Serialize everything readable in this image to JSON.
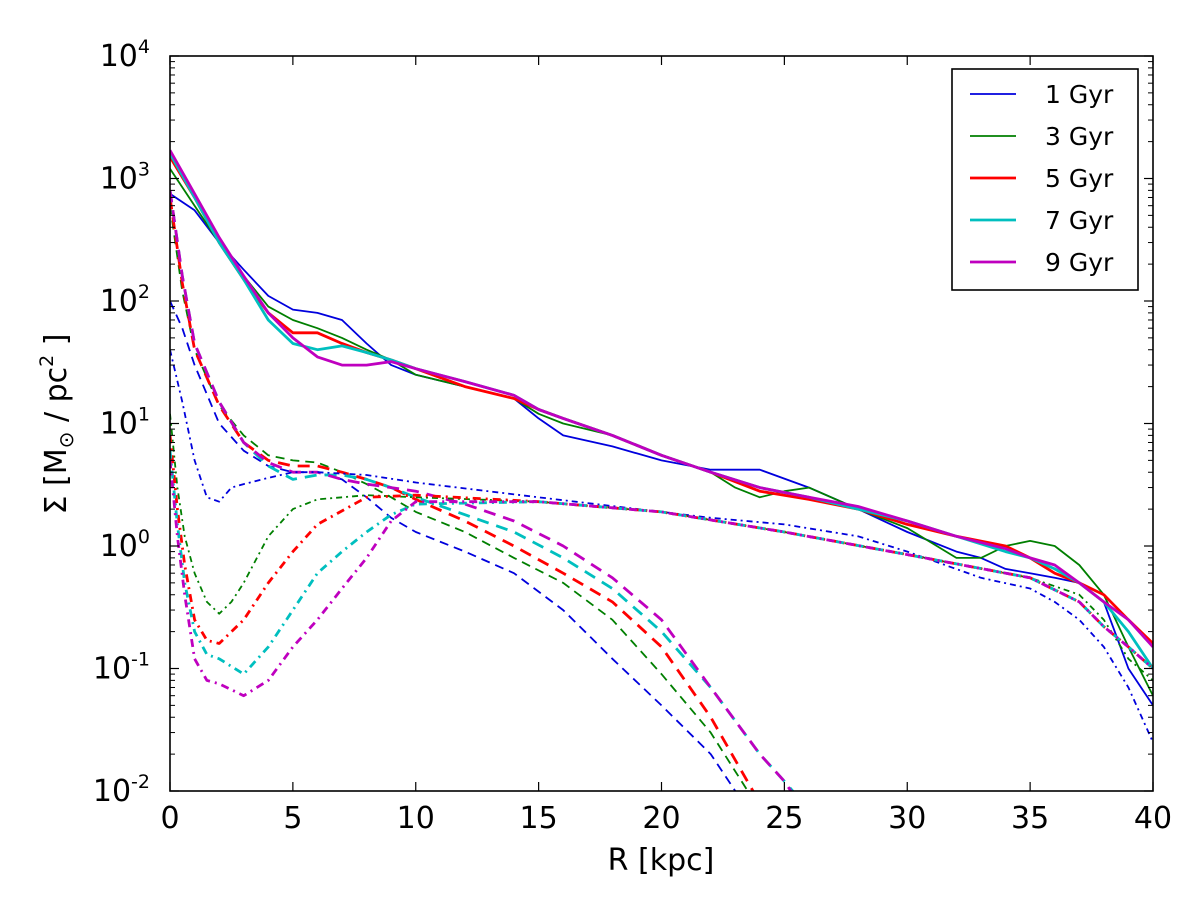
{
  "chart_data": {
    "type": "line",
    "xlabel": "R [kpc]",
    "ylabel": {
      "prefix": "Σ [M",
      "subscript": "⊙",
      "middle": " / pc",
      "superscript": "2",
      "suffix": " ]"
    },
    "xlim": [
      0,
      40
    ],
    "ylim": [
      0.01,
      10000
    ],
    "yscale": "log",
    "x_ticks": [
      0,
      5,
      10,
      15,
      20,
      25,
      30,
      35,
      40
    ],
    "x_tick_labels": [
      "0",
      "5",
      "10",
      "15",
      "20",
      "25",
      "30",
      "35",
      "40"
    ],
    "y_ticks": [
      {
        "value": 0.01,
        "base": "10",
        "exp": "-2"
      },
      {
        "value": 0.1,
        "base": "10",
        "exp": "-1"
      },
      {
        "value": 1,
        "base": "10",
        "exp": "0"
      },
      {
        "value": 10,
        "base": "10",
        "exp": "1"
      },
      {
        "value": 100,
        "base": "10",
        "exp": "2"
      },
      {
        "value": 1000,
        "base": "10",
        "exp": "3"
      },
      {
        "value": 10000,
        "base": "10",
        "exp": "4"
      }
    ],
    "legend_position": "top-right",
    "legend": [
      {
        "label": "1 Gyr",
        "color": "#0000dd"
      },
      {
        "label": "3 Gyr",
        "color": "#007f00"
      },
      {
        "label": "5 Gyr",
        "color": "#ff0000"
      },
      {
        "label": "7 Gyr",
        "color": "#00bfbf"
      },
      {
        "label": "9 Gyr",
        "color": "#bf00bf"
      }
    ],
    "series": [
      {
        "time": "1 Gyr",
        "component": "solid",
        "style": "solid",
        "color": "#0000dd",
        "width": 1.8,
        "x": [
          0,
          1,
          2,
          3,
          4,
          5,
          6,
          7,
          8,
          9,
          10,
          12,
          14,
          15,
          16,
          18,
          20,
          22,
          24,
          26,
          28,
          30,
          32,
          33,
          34,
          35,
          36,
          37,
          38,
          39,
          40
        ],
        "y": [
          750,
          550,
          300,
          180,
          110,
          85,
          80,
          70,
          45,
          30,
          25,
          20,
          16,
          11,
          8,
          6.5,
          5,
          4.2,
          4.2,
          3,
          2,
          1.3,
          0.9,
          0.8,
          0.65,
          0.6,
          0.55,
          0.5,
          0.35,
          0.1,
          0.05
        ]
      },
      {
        "time": "3 Gyr",
        "component": "solid",
        "style": "solid",
        "color": "#007f00",
        "width": 1.8,
        "x": [
          0,
          1,
          2,
          3,
          4,
          5,
          6,
          7,
          8,
          9,
          10,
          12,
          14,
          15,
          16,
          18,
          20,
          22,
          23,
          24,
          25,
          26,
          28,
          30,
          32,
          33,
          34,
          35,
          36,
          37,
          38,
          39,
          40
        ],
        "y": [
          1200,
          600,
          300,
          160,
          90,
          70,
          60,
          50,
          40,
          33,
          25,
          20,
          16,
          12,
          10,
          8,
          5.5,
          4,
          3,
          2.5,
          2.8,
          3,
          2,
          1.4,
          0.8,
          0.8,
          1,
          1.1,
          1,
          0.7,
          0.4,
          0.15,
          0.06
        ]
      },
      {
        "time": "5 Gyr",
        "component": "solid",
        "style": "solid",
        "color": "#ff0000",
        "width": 2.8,
        "x": [
          0,
          1,
          2,
          3,
          4,
          5,
          6,
          7,
          8,
          9,
          10,
          12,
          14,
          15,
          16,
          18,
          20,
          22,
          24,
          26,
          28,
          30,
          32,
          34,
          35,
          36,
          37,
          38,
          39,
          40
        ],
        "y": [
          1500,
          700,
          300,
          150,
          80,
          55,
          55,
          45,
          38,
          33,
          28,
          20,
          16,
          13,
          11,
          8,
          5.5,
          4,
          2.8,
          2.4,
          2,
          1.5,
          1.2,
          1,
          0.8,
          0.6,
          0.5,
          0.4,
          0.25,
          0.16
        ]
      },
      {
        "time": "7 Gyr",
        "component": "solid",
        "style": "solid",
        "color": "#00bfbf",
        "width": 2.8,
        "x": [
          0,
          1,
          2,
          3,
          4,
          5,
          6,
          7,
          8,
          9,
          10,
          12,
          14,
          15,
          16,
          18,
          20,
          22,
          24,
          26,
          28,
          30,
          32,
          34,
          35,
          36,
          37,
          38,
          39,
          40
        ],
        "y": [
          1600,
          700,
          300,
          150,
          70,
          45,
          40,
          43,
          38,
          33,
          28,
          22,
          17,
          13,
          11,
          8,
          5.5,
          4,
          3,
          2.5,
          2,
          1.6,
          1.2,
          0.9,
          0.8,
          0.65,
          0.5,
          0.35,
          0.2,
          0.1
        ]
      },
      {
        "time": "9 Gyr",
        "component": "solid",
        "style": "solid",
        "color": "#bf00bf",
        "width": 2.8,
        "x": [
          0,
          1,
          2,
          3,
          4,
          5,
          6,
          7,
          8,
          9,
          10,
          12,
          14,
          15,
          16,
          18,
          20,
          22,
          24,
          26,
          28,
          30,
          32,
          34,
          35,
          36,
          37,
          38,
          39,
          40
        ],
        "y": [
          1700,
          750,
          330,
          160,
          80,
          50,
          35,
          30,
          30,
          32,
          28,
          22,
          17,
          13,
          11,
          8,
          5.5,
          4,
          3,
          2.5,
          2.1,
          1.6,
          1.2,
          0.95,
          0.8,
          0.7,
          0.5,
          0.35,
          0.25,
          0.15
        ]
      },
      {
        "time": "1 Gyr",
        "component": "dashed",
        "style": "dashed",
        "color": "#0000dd",
        "width": 1.8,
        "x": [
          0,
          0.5,
          1,
          2,
          3,
          4,
          5,
          6,
          7,
          8,
          9,
          10,
          12,
          14,
          16,
          18,
          20,
          22,
          24
        ],
        "y": [
          100,
          60,
          30,
          10,
          6,
          4.5,
          4,
          4,
          3.5,
          2.5,
          1.7,
          1.3,
          0.9,
          0.6,
          0.3,
          0.12,
          0.05,
          0.02,
          0.005
        ]
      },
      {
        "time": "3 Gyr",
        "component": "dashed",
        "style": "dashed",
        "color": "#007f00",
        "width": 1.8,
        "x": [
          0,
          0.5,
          1,
          2,
          3,
          4,
          5,
          6,
          7,
          8,
          9,
          10,
          12,
          14,
          16,
          18,
          20,
          22,
          24
        ],
        "y": [
          600,
          120,
          40,
          14,
          8,
          5.5,
          5,
          4.8,
          4,
          3.2,
          2.5,
          1.9,
          1.3,
          0.8,
          0.5,
          0.25,
          0.09,
          0.03,
          0.007
        ]
      },
      {
        "time": "5 Gyr",
        "component": "dashed",
        "style": "dashed",
        "color": "#ff0000",
        "width": 2.8,
        "x": [
          0,
          0.5,
          1,
          2,
          3,
          4,
          5,
          6,
          7,
          8,
          9,
          10,
          12,
          14,
          16,
          18,
          20,
          22,
          24
        ],
        "y": [
          700,
          140,
          40,
          14,
          7,
          5,
          4.5,
          4.5,
          4,
          3.5,
          3,
          2.4,
          1.6,
          1,
          0.6,
          0.35,
          0.15,
          0.04,
          0.008
        ]
      },
      {
        "time": "7 Gyr",
        "component": "dashed",
        "style": "dashed",
        "color": "#00bfbf",
        "width": 2.8,
        "x": [
          0,
          0.5,
          1,
          2,
          3,
          4,
          5,
          6,
          7,
          8,
          9,
          10,
          12,
          14,
          16,
          18,
          20,
          22,
          24,
          25,
          26
        ],
        "y": [
          800,
          160,
          45,
          15,
          7,
          4.5,
          3.5,
          3.8,
          3.8,
          3.5,
          3,
          2.5,
          1.8,
          1.3,
          0.8,
          0.45,
          0.2,
          0.07,
          0.02,
          0.012,
          0.007
        ]
      },
      {
        "time": "9 Gyr",
        "component": "dashed",
        "style": "dashed",
        "color": "#bf00bf",
        "width": 2.8,
        "x": [
          0,
          0.5,
          1,
          2,
          3,
          4,
          5,
          6,
          7,
          8,
          9,
          10,
          12,
          14,
          16,
          18,
          20,
          22,
          24,
          25,
          26
        ],
        "y": [
          800,
          160,
          45,
          15,
          7,
          4.8,
          4,
          4,
          3.5,
          3.2,
          3,
          2.8,
          2.2,
          1.6,
          1,
          0.55,
          0.25,
          0.07,
          0.02,
          0.012,
          0.006
        ]
      },
      {
        "time": "1 Gyr",
        "component": "dashdot",
        "style": "dashdot",
        "color": "#0000dd",
        "width": 1.8,
        "x": [
          0,
          0.5,
          1,
          1.5,
          2,
          2.5,
          3,
          4,
          5,
          6,
          8,
          10,
          15,
          20,
          22,
          25,
          28,
          30,
          33,
          35,
          36,
          37,
          38,
          39,
          40
        ],
        "y": [
          40,
          15,
          5,
          2.5,
          2.3,
          3,
          3.2,
          3.6,
          4,
          4,
          3.8,
          3.3,
          2.5,
          1.9,
          1.7,
          1.5,
          1.2,
          0.9,
          0.55,
          0.45,
          0.35,
          0.25,
          0.15,
          0.07,
          0.025
        ]
      },
      {
        "time": "3 Gyr",
        "component": "dashdot",
        "style": "dashdot",
        "color": "#007f00",
        "width": 1.8,
        "x": [
          0,
          0.3,
          0.6,
          1,
          1.5,
          2,
          2.5,
          3,
          4,
          5,
          6,
          8,
          10,
          15,
          20,
          25,
          30,
          35,
          37,
          38,
          39,
          40
        ],
        "y": [
          12,
          3,
          1.2,
          0.6,
          0.35,
          0.28,
          0.35,
          0.5,
          1.2,
          2,
          2.4,
          2.6,
          2.5,
          2.3,
          1.9,
          1.3,
          0.85,
          0.55,
          0.4,
          0.25,
          0.12,
          0.08
        ]
      },
      {
        "time": "5 Gyr",
        "component": "dashdot",
        "style": "dashdot",
        "color": "#ff0000",
        "width": 2.8,
        "x": [
          0,
          0.3,
          0.6,
          1,
          1.5,
          2,
          3,
          4,
          5,
          6,
          8,
          10,
          15,
          20,
          25,
          30,
          35,
          37,
          38,
          39,
          40
        ],
        "y": [
          8,
          2,
          0.7,
          0.25,
          0.17,
          0.16,
          0.25,
          0.5,
          0.9,
          1.5,
          2.5,
          2.6,
          2.3,
          1.9,
          1.3,
          0.85,
          0.55,
          0.35,
          0.22,
          0.15,
          0.1
        ]
      },
      {
        "time": "7 Gyr",
        "component": "dashdot",
        "style": "dashdot",
        "color": "#00bfbf",
        "width": 2.8,
        "x": [
          0,
          0.3,
          0.6,
          1,
          1.5,
          2,
          3,
          4,
          5,
          6,
          7,
          8,
          9,
          10,
          15,
          20,
          25,
          30,
          35,
          37,
          38,
          39,
          40
        ],
        "y": [
          6,
          1.5,
          0.5,
          0.2,
          0.13,
          0.12,
          0.09,
          0.15,
          0.3,
          0.6,
          0.9,
          1.3,
          1.8,
          2.2,
          2.3,
          1.9,
          1.3,
          0.85,
          0.55,
          0.35,
          0.22,
          0.15,
          0.1
        ]
      },
      {
        "time": "9 Gyr",
        "component": "dashdot",
        "style": "dashdot",
        "color": "#bf00bf",
        "width": 2.8,
        "x": [
          0,
          0.3,
          0.6,
          1,
          1.5,
          2,
          3,
          4,
          5,
          6,
          7,
          8,
          9,
          10,
          15,
          20,
          25,
          30,
          35,
          37,
          38,
          39,
          40
        ],
        "y": [
          5,
          1.2,
          0.4,
          0.12,
          0.08,
          0.075,
          0.06,
          0.08,
          0.15,
          0.25,
          0.45,
          0.8,
          1.6,
          2.3,
          2.3,
          1.9,
          1.3,
          0.85,
          0.55,
          0.35,
          0.22,
          0.15,
          0.1
        ]
      }
    ]
  }
}
